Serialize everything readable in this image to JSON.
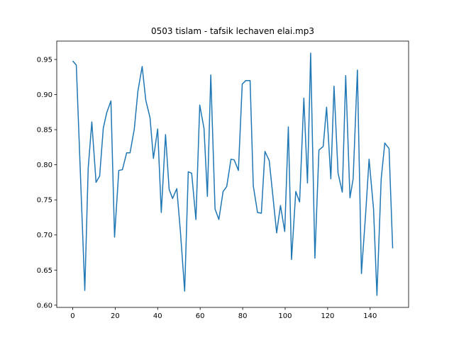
{
  "chart_data": {
    "type": "line",
    "title": "0503 tislam - tafsik lechaven elai.mp3",
    "color": "#1f77b4",
    "x": [
      0,
      1.7,
      5.7,
      7.3,
      9,
      11,
      12.7,
      14.4,
      16,
      18,
      19.7,
      21.7,
      23.4,
      25.4,
      27,
      29,
      30.7,
      32.7,
      34.4,
      36.4,
      38,
      40,
      41.7,
      43.7,
      45.4,
      47,
      49,
      50.7,
      52.7,
      54.4,
      56,
      58,
      59.8,
      61.8,
      63.4,
      65,
      67,
      68.8,
      70.8,
      72.5,
      74.5,
      76,
      78,
      79.8,
      81.5,
      83.5,
      85,
      87,
      88.8,
      90.5,
      92.5,
      94,
      96,
      97.8,
      99.8,
      101.5,
      103,
      105,
      106.8,
      108.8,
      110.5,
      112,
      114,
      115.9,
      117.9,
      119.5,
      121.5,
      123,
      124.9,
      126.9,
      128.5,
      130.5,
      132,
      134,
      135.9,
      137.9,
      139.5,
      141.6,
      143.2,
      145.2,
      146.9,
      148.9,
      150.6
    ],
    "values": [
      0.948,
      0.942,
      0.621,
      0.795,
      0.861,
      0.775,
      0.784,
      0.852,
      0.874,
      0.891,
      0.697,
      0.792,
      0.793,
      0.817,
      0.817,
      0.851,
      0.905,
      0.94,
      0.892,
      0.867,
      0.809,
      0.851,
      0.732,
      0.843,
      0.765,
      0.752,
      0.766,
      0.705,
      0.62,
      0.79,
      0.788,
      0.722,
      0.885,
      0.852,
      0.755,
      0.928,
      0.737,
      0.722,
      0.762,
      0.769,
      0.808,
      0.807,
      0.792,
      0.915,
      0.92,
      0.92,
      0.77,
      0.732,
      0.731,
      0.819,
      0.806,
      0.762,
      0.703,
      0.742,
      0.705,
      0.854,
      0.665,
      0.762,
      0.747,
      0.895,
      0.774,
      0.959,
      0.667,
      0.821,
      0.826,
      0.882,
      0.78,
      0.912,
      0.788,
      0.761,
      0.927,
      0.753,
      0.78,
      0.935,
      0.645,
      0.731,
      0.808,
      0.737,
      0.614,
      0.78,
      0.831,
      0.823,
      0.681
    ],
    "xlim": [
      -7.5,
      158.1
    ],
    "ylim": [
      0.5968,
      0.9762
    ],
    "xticks": [
      0,
      20,
      40,
      60,
      80,
      100,
      120,
      140
    ],
    "yticks": [
      {
        "value": 0.6,
        "label": "0.60"
      },
      {
        "value": 0.65,
        "label": "0.65"
      },
      {
        "value": 0.7,
        "label": "0.70"
      },
      {
        "value": 0.75,
        "label": "0.75"
      },
      {
        "value": 0.8,
        "label": "0.80"
      },
      {
        "value": 0.85,
        "label": "0.85"
      },
      {
        "value": 0.9,
        "label": "0.90"
      },
      {
        "value": 0.95,
        "label": "0.95"
      }
    ]
  }
}
